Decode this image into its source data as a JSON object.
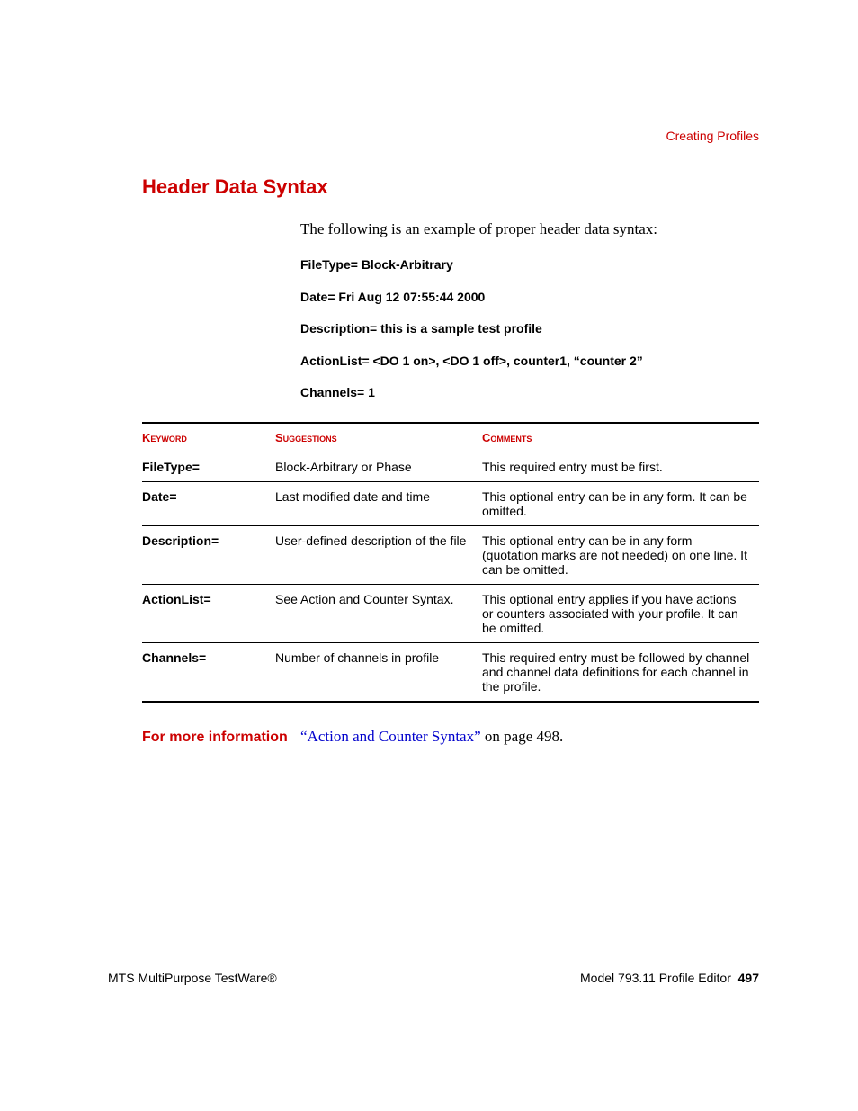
{
  "breadcrumb": "Creating Profiles",
  "heading": "Header Data Syntax",
  "intro": "The following is an example of proper header data syntax:",
  "code": {
    "l1": "FileType= Block-Arbitrary",
    "l2": "Date= Fri Aug 12 07:55:44 2000",
    "l3": "Description= this is a sample test profile",
    "l4": "ActionList= <DO 1 on>, <DO 1 off>, counter1, “counter 2”",
    "l5": "Channels= 1"
  },
  "table": {
    "headers": {
      "c1": "Keyword",
      "c2": "Suggestions",
      "c3": "Comments"
    },
    "rows": [
      {
        "kw": "FileType=",
        "sug": "Block-Arbitrary or Phase",
        "com": "This required entry must be first."
      },
      {
        "kw": "Date=",
        "sug": "Last modified date and time",
        "com": "This optional entry can be in any form. It can be omitted."
      },
      {
        "kw": "Description=",
        "sug": "User-defined description of the file",
        "com": "This optional entry can be in any form (quotation marks are not needed) on one line. It can be omitted."
      },
      {
        "kw": "ActionList=",
        "sug": "See Action and Counter Syntax.",
        "com": "This optional entry applies if you have actions or counters associated with your profile. It can be omitted."
      },
      {
        "kw": "Channels=",
        "sug": "Number of channels in profile",
        "com": "This required entry must be followed by channel and channel data definitions for each channel in the profile."
      }
    ]
  },
  "more": {
    "label": "For more information",
    "link": "“Action and Counter Syntax”",
    "tail": " on page 498."
  },
  "footer": {
    "left": "MTS MultiPurpose TestWare®",
    "right_text": "Model 793.11 Profile Editor",
    "page": "497"
  },
  "colors": {
    "accent": "#cc0000",
    "link": "#0000cc",
    "text": "#000000",
    "bg": "#ffffff"
  }
}
